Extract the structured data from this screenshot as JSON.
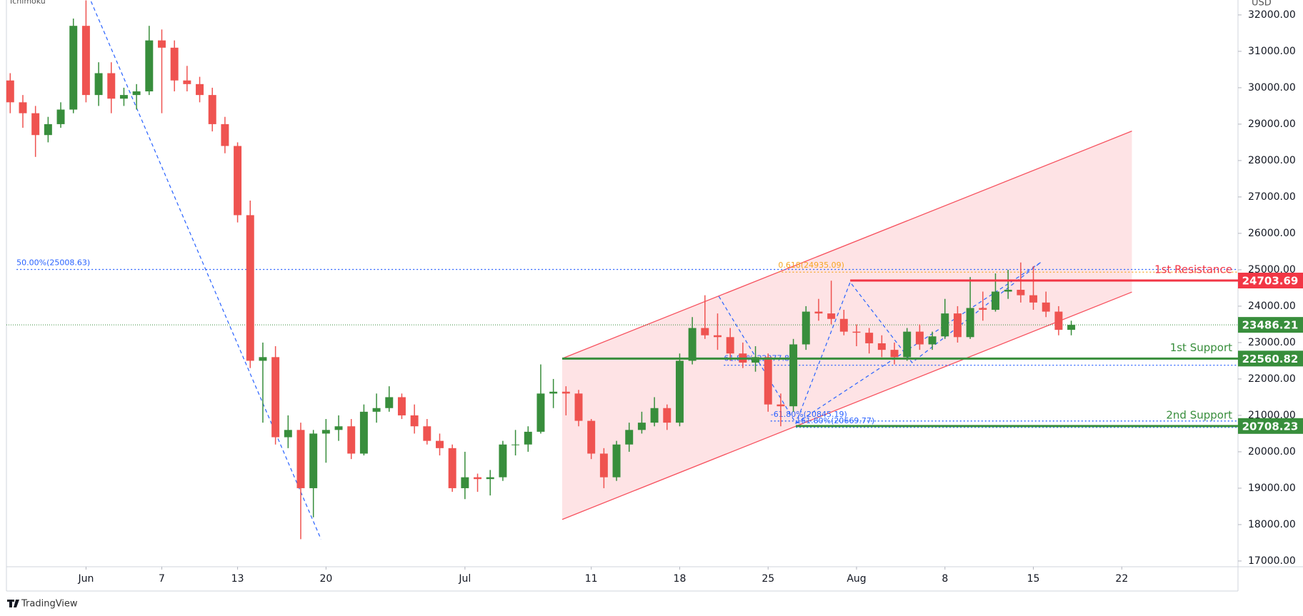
{
  "chart_data": {
    "type": "candlestick",
    "indicator": "Ichimoku",
    "currency": "USD",
    "brand": "TradingView",
    "up_color": "#388e3c",
    "down_color": "#ef5350",
    "grid": false,
    "xlim": [
      -6.3,
      91.2
    ],
    "xticks": [
      {
        "value": 0,
        "label": "Jun"
      },
      {
        "value": 6,
        "label": "7"
      },
      {
        "value": 12,
        "label": "13"
      },
      {
        "value": 19,
        "label": "20"
      },
      {
        "value": 30,
        "label": "Jul"
      },
      {
        "value": 40,
        "label": "11"
      },
      {
        "value": 47,
        "label": "18"
      },
      {
        "value": 54,
        "label": "25"
      },
      {
        "value": 61,
        "label": "Aug"
      },
      {
        "value": 68,
        "label": "8"
      },
      {
        "value": 75,
        "label": "15"
      },
      {
        "value": 82,
        "label": "22"
      }
    ],
    "ylim": [
      16842,
      32410
    ],
    "yticks": [
      {
        "value": 17000,
        "label": "17000.00"
      },
      {
        "value": 18000,
        "label": "18000.00"
      },
      {
        "value": 19000,
        "label": "19000.00"
      },
      {
        "value": 20000,
        "label": "20000.00"
      },
      {
        "value": 21000,
        "label": "21000.00"
      },
      {
        "value": 22000,
        "label": "22000.00"
      },
      {
        "value": 23000,
        "label": "23000.00"
      },
      {
        "value": 24000,
        "label": "24000.00"
      },
      {
        "value": 25000,
        "label": "25000.00"
      },
      {
        "value": 26000,
        "label": "26000.00"
      },
      {
        "value": 27000,
        "label": "27000.00"
      },
      {
        "value": 28000,
        "label": "28000.00"
      },
      {
        "value": 29000,
        "label": "29000.00"
      },
      {
        "value": 30000,
        "label": "30000.00"
      },
      {
        "value": 31000,
        "label": "31000.00"
      },
      {
        "value": 32000,
        "label": "32000.00"
      }
    ],
    "x": [
      -6,
      -5,
      -4,
      -3,
      -2,
      -1,
      0,
      1,
      2,
      3,
      4,
      5,
      6,
      7,
      8,
      9,
      10,
      11,
      12,
      13,
      14,
      15,
      16,
      17,
      18,
      19,
      20,
      21,
      22,
      23,
      24,
      25,
      26,
      27,
      28,
      29,
      30,
      31,
      32,
      33,
      34,
      35,
      36,
      37,
      38,
      39,
      40,
      41,
      42,
      43,
      44,
      45,
      46,
      47,
      48,
      49,
      50,
      51,
      52,
      53,
      54,
      55,
      56,
      57,
      58,
      59,
      60,
      61,
      62,
      63,
      64,
      65,
      66,
      67,
      68,
      69,
      70,
      71,
      72,
      73,
      74,
      75,
      76,
      77,
      78
    ],
    "ohlc": [
      [
        30200,
        30400,
        29300,
        29600
      ],
      [
        29600,
        29800,
        28900,
        29300
      ],
      [
        29300,
        29500,
        28100,
        28700
      ],
      [
        28700,
        29200,
        28500,
        29000
      ],
      [
        29000,
        29600,
        28900,
        29400
      ],
      [
        29400,
        31900,
        29300,
        31700
      ],
      [
        31700,
        32400,
        29600,
        29800
      ],
      [
        29800,
        30700,
        29500,
        30400
      ],
      [
        30400,
        30700,
        29300,
        29700
      ],
      [
        29700,
        30000,
        29500,
        29800
      ],
      [
        29800,
        30100,
        29400,
        29900
      ],
      [
        29900,
        31700,
        29800,
        31300
      ],
      [
        31300,
        31600,
        29300,
        31100
      ],
      [
        31100,
        31300,
        29900,
        30200
      ],
      [
        30200,
        30600,
        29900,
        30100
      ],
      [
        30100,
        30300,
        29600,
        29800
      ],
      [
        29800,
        30000,
        28800,
        29000
      ],
      [
        29000,
        29200,
        28200,
        28400
      ],
      [
        28400,
        28500,
        26300,
        26500
      ],
      [
        26500,
        26900,
        22300,
        22500
      ],
      [
        22500,
        23000,
        20800,
        22600
      ],
      [
        22600,
        22900,
        20200,
        20400
      ],
      [
        20400,
        21000,
        20100,
        20600
      ],
      [
        20600,
        20800,
        17600,
        19000
      ],
      [
        19000,
        20600,
        18200,
        20500
      ],
      [
        20500,
        20900,
        19700,
        20600
      ],
      [
        20600,
        21000,
        20300,
        20700
      ],
      [
        20700,
        20900,
        19800,
        19950
      ],
      [
        19950,
        21300,
        19900,
        21100
      ],
      [
        21100,
        21600,
        20800,
        21200
      ],
      [
        21200,
        21800,
        21100,
        21500
      ],
      [
        21500,
        21600,
        20900,
        21000
      ],
      [
        21000,
        21300,
        20500,
        20700
      ],
      [
        20700,
        20900,
        20200,
        20300
      ],
      [
        20300,
        20500,
        19900,
        20100
      ],
      [
        20100,
        20200,
        18900,
        19000
      ],
      [
        19000,
        20000,
        18700,
        19300
      ],
      [
        19300,
        19400,
        18900,
        19250
      ],
      [
        19250,
        19500,
        18800,
        19300
      ],
      [
        19300,
        20300,
        19200,
        20200
      ],
      [
        20200,
        20600,
        19900,
        20200
      ],
      [
        20200,
        20700,
        20000,
        20550
      ],
      [
        20550,
        22400,
        20500,
        21600
      ],
      [
        21600,
        22000,
        21200,
        21650
      ],
      [
        21650,
        21800,
        21000,
        21600
      ],
      [
        21600,
        21700,
        20700,
        20850
      ],
      [
        20850,
        20900,
        19800,
        19950
      ],
      [
        19950,
        20100,
        19000,
        19300
      ],
      [
        19300,
        20300,
        19200,
        20200
      ],
      [
        20200,
        20800,
        20000,
        20600
      ],
      [
        20600,
        21100,
        20500,
        20800
      ],
      [
        20800,
        21500,
        20700,
        21200
      ],
      [
        21200,
        21300,
        20600,
        20800
      ],
      [
        20800,
        22700,
        20700,
        22500
      ],
      [
        22500,
        23700,
        22400,
        23400
      ],
      [
        23400,
        24300,
        23100,
        23200
      ],
      [
        23200,
        23800,
        22800,
        23150
      ],
      [
        23150,
        23400,
        22500,
        22700
      ],
      [
        22700,
        23000,
        22300,
        22450
      ],
      [
        22450,
        22900,
        22200,
        22600
      ],
      [
        22600,
        22700,
        21100,
        21300
      ],
      [
        21300,
        21600,
        20700,
        21250
      ],
      [
        21250,
        23100,
        21100,
        22950
      ],
      [
        22950,
        24000,
        22800,
        23850
      ],
      [
        23850,
        24200,
        23600,
        23800
      ],
      [
        23800,
        24700,
        23500,
        23650
      ],
      [
        23650,
        23900,
        23200,
        23300
      ],
      [
        23300,
        23500,
        22900,
        23270
      ],
      [
        23270,
        23400,
        22700,
        22980
      ],
      [
        22980,
        23200,
        22600,
        22800
      ],
      [
        22800,
        23000,
        22400,
        22600
      ],
      [
        22600,
        23400,
        22500,
        23300
      ],
      [
        23300,
        23500,
        22800,
        22950
      ],
      [
        22950,
        23300,
        22800,
        23170
      ],
      [
        23170,
        24200,
        23100,
        23800
      ],
      [
        23800,
        24000,
        23000,
        23150
      ],
      [
        23150,
        24800,
        23100,
        23950
      ],
      [
        23950,
        24400,
        23600,
        23900
      ],
      [
        23900,
        24900,
        23850,
        24400
      ],
      [
        24400,
        25000,
        24200,
        24450
      ],
      [
        24450,
        25200,
        24100,
        24300
      ],
      [
        24300,
        25100,
        23900,
        24100
      ],
      [
        24100,
        24400,
        23700,
        23850
      ],
      [
        23850,
        24000,
        23200,
        23350
      ],
      [
        23350,
        23600,
        23200,
        23486.21
      ]
    ],
    "current_price": 23486.21,
    "current_color": "#388e3c",
    "levels": [
      {
        "name": "1st Resistance",
        "value": 24703.69,
        "color": "#f23645",
        "x_start": 60.5
      },
      {
        "name": "1st Support",
        "value": 22560.82,
        "color": "#388e3c",
        "x_start": 37.7
      },
      {
        "name": "2nd Support",
        "value": 20708.23,
        "color": "#388e3c",
        "x_start": 56.2
      }
    ],
    "fib_lines": [
      {
        "label": "50.00%(25008.63)",
        "value": 25008.63,
        "color": "#2962ff",
        "x_start": -5.5
      },
      {
        "label": "0.618(24935.09)",
        "value": 24935.09,
        "color": "#f5a623",
        "x_start": 54.8
      },
      {
        "label": "61.80%(22377.86)",
        "value": 22377.86,
        "color": "#2962ff",
        "x_start": 50.5
      },
      {
        "label": "-61.80%(20845.19)",
        "value": 20845.19,
        "color": "#2962ff",
        "x_start": 54.2
      },
      {
        "label": "161.80%(20669.77)",
        "value": 20669.77,
        "color": "#2962ff",
        "x_start": 56.2
      }
    ],
    "channel": {
      "color": "#f7525f",
      "upper": [
        [
          37.7,
          22563
        ],
        [
          82.8,
          28809
        ]
      ],
      "lower": [
        [
          37.7,
          18141
        ],
        [
          82.8,
          24387
        ]
      ]
    },
    "dashed_lines": {
      "color": "#2962ff",
      "paths": [
        [
          [
            0.4,
            32370
          ],
          [
            18.6,
            17600
          ]
        ],
        [
          [
            50.1,
            24270
          ],
          [
            56.2,
            20782
          ],
          [
            60.5,
            24660
          ],
          [
            65.4,
            22449
          ],
          [
            75.6,
            25207
          ]
        ],
        [
          [
            56.2,
            20782
          ],
          [
            75.6,
            25207
          ]
        ]
      ]
    }
  }
}
